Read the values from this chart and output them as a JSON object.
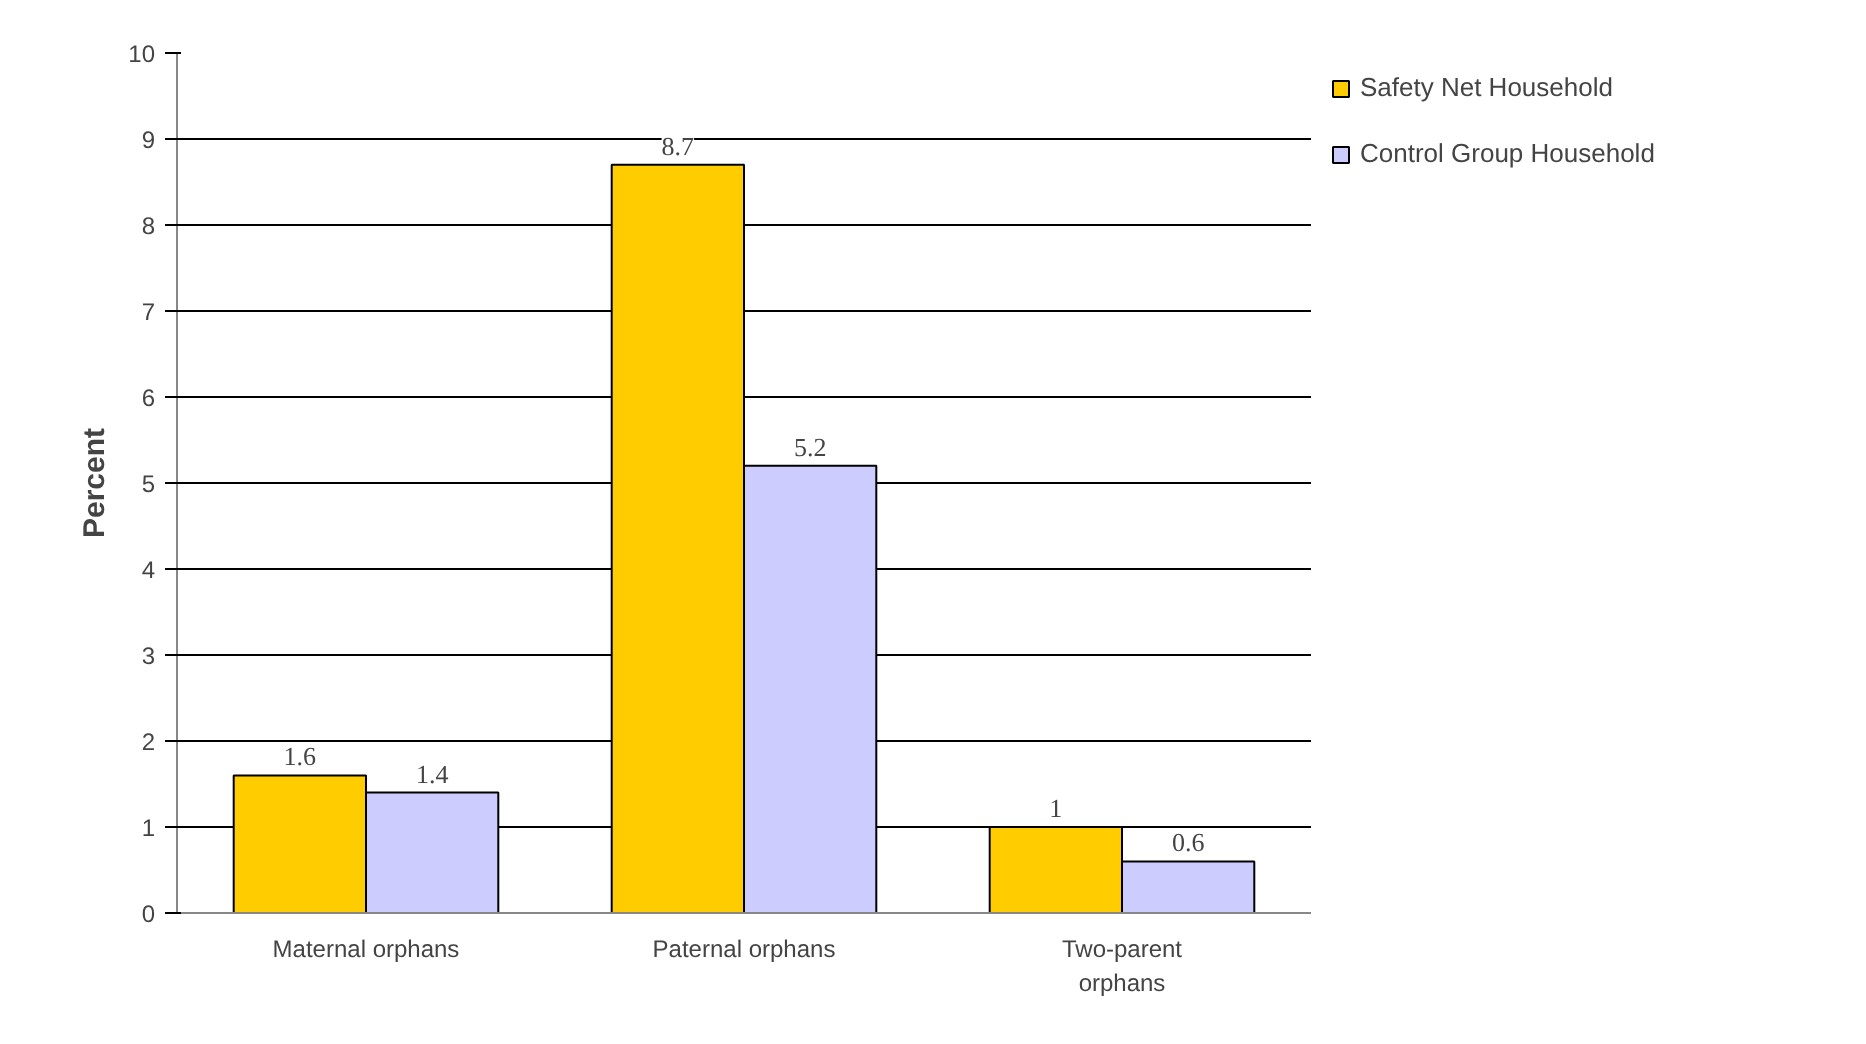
{
  "chart_data": {
    "type": "bar",
    "ylabel": "Percent",
    "categories": [
      "Maternal orphans",
      "Paternal orphans",
      "Two-parent orphans"
    ],
    "series": [
      {
        "name": "Safety Net Household",
        "color": "#ffcc00",
        "values": [
          1.6,
          8.7,
          1
        ]
      },
      {
        "name": "Control Group Household",
        "color": "#ccccff",
        "values": [
          1.4,
          5.2,
          0.6
        ]
      }
    ],
    "ylim": [
      0,
      10
    ],
    "yticks": [
      0,
      1,
      2,
      3,
      4,
      5,
      6,
      7,
      8,
      9,
      10
    ],
    "grid": "y",
    "legend": "top right",
    "data_labels": true
  }
}
